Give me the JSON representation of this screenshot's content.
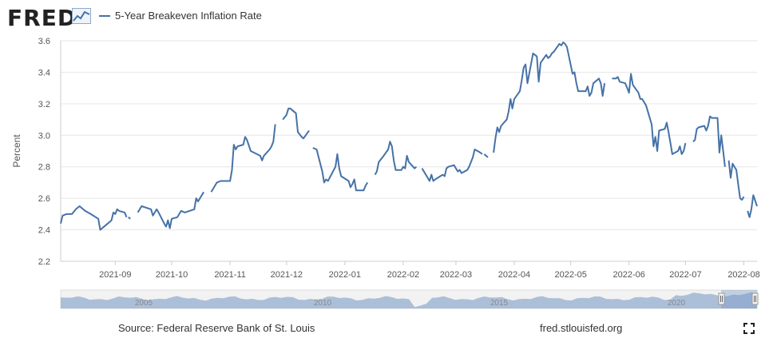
{
  "header": {
    "logo_text": "FRED",
    "legend_label": "5-Year Breakeven Inflation Rate"
  },
  "footer": {
    "source": "Source: Federal Reserve Bank of St. Louis",
    "url": "fred.stlouisfed.org"
  },
  "colors": {
    "series": "#4572a7",
    "grid": "#e6e6e6",
    "navigator_fill": "#94aed0",
    "axis_text": "#555555"
  },
  "icons": {
    "logo_graph": "line-chart-icon",
    "fullscreen": "fullscreen-icon"
  },
  "chart_data": {
    "type": "line",
    "title": "",
    "xlabel": "",
    "ylabel": "Percent",
    "ylim": [
      2.2,
      3.6
    ],
    "y_ticks": [
      2.2,
      2.4,
      2.6,
      2.8,
      3.0,
      3.2,
      3.4,
      3.6
    ],
    "x_tick_labels": [
      "2021-09",
      "2021-10",
      "2021-11",
      "2021-12",
      "2022-01",
      "2022-02",
      "2022-03",
      "2022-04",
      "2022-05",
      "2022-06",
      "2022-07",
      "2022-08"
    ],
    "xlim": [
      "2021-08-03",
      "2022-08-08"
    ],
    "grid": true,
    "legend_position": "top-left",
    "series": [
      {
        "name": "5-Year Breakeven Inflation Rate",
        "points": [
          [
            "2021-08-03",
            2.44
          ],
          [
            "2021-08-04",
            2.49
          ],
          [
            "2021-08-06",
            2.5
          ],
          [
            "2021-08-09",
            2.5
          ],
          [
            "2021-08-11",
            2.53
          ],
          [
            "2021-08-13",
            2.55
          ],
          [
            "2021-08-16",
            2.52
          ],
          [
            "2021-08-19",
            2.5
          ],
          [
            "2021-08-23",
            2.47
          ],
          [
            "2021-08-24",
            2.4
          ],
          [
            "2021-08-27",
            2.43
          ],
          [
            "2021-08-30",
            2.46
          ],
          [
            "2021-08-31",
            2.51
          ],
          [
            "2021-09-01",
            2.5
          ],
          [
            "2021-09-02",
            2.53
          ],
          [
            "2021-09-03",
            2.52
          ],
          [
            "2021-09-06",
            2.51
          ],
          [
            "2021-09-07",
            2.48
          ],
          null,
          [
            "2021-09-08",
            2.48
          ],
          [
            "2021-09-09",
            2.47
          ],
          null,
          [
            "2021-09-13",
            2.51
          ],
          [
            "2021-09-15",
            2.55
          ],
          [
            "2021-09-20",
            2.53
          ],
          [
            "2021-09-21",
            2.49
          ],
          [
            "2021-09-23",
            2.53
          ],
          [
            "2021-09-24",
            2.51
          ],
          [
            "2021-09-27",
            2.44
          ],
          [
            "2021-09-28",
            2.42
          ],
          [
            "2021-09-29",
            2.46
          ],
          [
            "2021-09-30",
            2.41
          ],
          [
            "2021-10-01",
            2.47
          ],
          [
            "2021-10-04",
            2.48
          ],
          [
            "2021-10-06",
            2.52
          ],
          [
            "2021-10-08",
            2.51
          ],
          [
            "2021-10-13",
            2.53
          ],
          [
            "2021-10-14",
            2.6
          ],
          [
            "2021-10-15",
            2.58
          ],
          [
            "2021-10-18",
            2.64
          ],
          null,
          [
            "2021-10-22",
            2.64
          ],
          [
            "2021-10-25",
            2.7
          ],
          [
            "2021-10-27",
            2.71
          ],
          [
            "2021-11-01",
            2.71
          ],
          [
            "2021-11-02",
            2.78
          ],
          [
            "2021-11-03",
            2.94
          ],
          [
            "2021-11-04",
            2.91
          ],
          [
            "2021-11-05",
            2.93
          ],
          [
            "2021-11-08",
            2.94
          ],
          [
            "2021-11-09",
            2.99
          ],
          [
            "2021-11-10",
            2.97
          ],
          [
            "2021-11-12",
            2.9
          ],
          [
            "2021-11-17",
            2.87
          ],
          [
            "2021-11-18",
            2.84
          ],
          [
            "2021-11-19",
            2.87
          ],
          [
            "2021-11-22",
            2.91
          ],
          [
            "2021-11-23",
            2.93
          ],
          [
            "2021-11-24",
            2.96
          ],
          [
            "2021-11-25",
            3.07
          ],
          null,
          [
            "2021-11-29",
            3.1
          ],
          [
            "2021-12-01",
            3.13
          ],
          [
            "2021-12-02",
            3.17
          ],
          [
            "2021-12-03",
            3.17
          ],
          [
            "2021-12-06",
            3.14
          ],
          [
            "2021-12-07",
            3.02
          ],
          [
            "2021-12-09",
            2.99
          ],
          [
            "2021-12-10",
            2.98
          ],
          [
            "2021-12-13",
            3.03
          ],
          null,
          [
            "2021-12-15",
            2.92
          ],
          [
            "2021-12-17",
            2.91
          ],
          [
            "2021-12-20",
            2.77
          ],
          [
            "2021-12-21",
            2.7
          ],
          [
            "2021-12-22",
            2.72
          ],
          [
            "2021-12-23",
            2.71
          ],
          [
            "2021-12-27",
            2.8
          ],
          [
            "2021-12-28",
            2.88
          ],
          [
            "2021-12-29",
            2.79
          ],
          [
            "2021-12-30",
            2.74
          ],
          [
            "2022-01-03",
            2.71
          ],
          [
            "2022-01-04",
            2.67
          ],
          [
            "2022-01-05",
            2.69
          ],
          [
            "2022-01-06",
            2.72
          ],
          [
            "2022-01-07",
            2.65
          ],
          [
            "2022-01-10",
            2.65
          ],
          [
            "2022-01-11",
            2.65
          ],
          [
            "2022-01-12",
            2.68
          ],
          [
            "2022-01-13",
            2.7
          ],
          null,
          [
            "2022-01-17",
            2.75
          ],
          [
            "2022-01-18",
            2.77
          ],
          [
            "2022-01-19",
            2.83
          ],
          [
            "2022-01-21",
            2.86
          ],
          [
            "2022-01-24",
            2.91
          ],
          [
            "2022-01-25",
            2.96
          ],
          [
            "2022-01-26",
            2.93
          ],
          [
            "2022-01-27",
            2.84
          ],
          [
            "2022-01-28",
            2.78
          ],
          [
            "2022-01-31",
            2.78
          ],
          [
            "2022-02-01",
            2.8
          ],
          [
            "2022-02-02",
            2.79
          ],
          [
            "2022-02-03",
            2.87
          ],
          [
            "2022-02-04",
            2.83
          ],
          [
            "2022-02-07",
            2.79
          ],
          [
            "2022-02-08",
            2.8
          ],
          null,
          [
            "2022-02-11",
            2.79
          ],
          [
            "2022-02-14",
            2.73
          ],
          [
            "2022-02-15",
            2.71
          ],
          [
            "2022-02-16",
            2.75
          ],
          [
            "2022-02-17",
            2.71
          ],
          [
            "2022-02-18",
            2.72
          ],
          [
            "2022-02-22",
            2.75
          ],
          [
            "2022-02-23",
            2.74
          ],
          [
            "2022-02-24",
            2.79
          ],
          [
            "2022-02-25",
            2.8
          ],
          [
            "2022-02-28",
            2.81
          ],
          [
            "2022-03-01",
            2.79
          ],
          [
            "2022-03-02",
            2.77
          ],
          [
            "2022-03-03",
            2.78
          ],
          [
            "2022-03-04",
            2.76
          ],
          [
            "2022-03-07",
            2.78
          ],
          [
            "2022-03-08",
            2.8
          ],
          [
            "2022-03-09",
            2.83
          ],
          [
            "2022-03-10",
            2.86
          ],
          [
            "2022-03-11",
            2.91
          ],
          [
            "2022-03-14",
            2.89
          ],
          [
            "2022-03-15",
            2.88
          ],
          null,
          [
            "2022-03-16",
            2.88
          ],
          [
            "2022-03-18",
            2.86
          ],
          null,
          [
            "2022-03-21",
            2.89
          ],
          [
            "2022-03-22",
            2.98
          ],
          [
            "2022-03-23",
            3.05
          ],
          [
            "2022-03-24",
            3.02
          ],
          [
            "2022-03-25",
            3.06
          ],
          [
            "2022-03-28",
            3.1
          ],
          [
            "2022-03-29",
            3.15
          ],
          [
            "2022-03-30",
            3.23
          ],
          [
            "2022-03-31",
            3.17
          ],
          [
            "2022-04-01",
            3.23
          ],
          [
            "2022-04-04",
            3.28
          ],
          [
            "2022-04-05",
            3.35
          ],
          [
            "2022-04-06",
            3.43
          ],
          [
            "2022-04-07",
            3.45
          ],
          [
            "2022-04-08",
            3.33
          ],
          [
            "2022-04-11",
            3.52
          ],
          [
            "2022-04-12",
            3.51
          ],
          [
            "2022-04-13",
            3.5
          ],
          [
            "2022-04-14",
            3.34
          ],
          [
            "2022-04-15",
            3.46
          ],
          [
            "2022-04-18",
            3.51
          ],
          [
            "2022-04-19",
            3.49
          ],
          [
            "2022-04-20",
            3.5
          ],
          [
            "2022-04-21",
            3.52
          ],
          [
            "2022-04-22",
            3.53
          ],
          [
            "2022-04-25",
            3.58
          ],
          [
            "2022-04-26",
            3.57
          ],
          [
            "2022-04-27",
            3.59
          ],
          [
            "2022-04-28",
            3.58
          ],
          [
            "2022-04-29",
            3.56
          ],
          [
            "2022-05-02",
            3.39
          ],
          [
            "2022-05-03",
            3.4
          ],
          [
            "2022-05-04",
            3.33
          ],
          [
            "2022-05-05",
            3.28
          ],
          [
            "2022-05-06",
            3.28
          ],
          [
            "2022-05-09",
            3.28
          ],
          [
            "2022-05-10",
            3.31
          ],
          [
            "2022-05-11",
            3.25
          ],
          [
            "2022-05-12",
            3.27
          ],
          [
            "2022-05-13",
            3.33
          ],
          [
            "2022-05-16",
            3.36
          ],
          [
            "2022-05-17",
            3.33
          ],
          [
            "2022-05-18",
            3.25
          ],
          [
            "2022-05-19",
            3.33
          ],
          null,
          [
            "2022-05-23",
            3.36
          ],
          [
            "2022-05-25",
            3.36
          ],
          [
            "2022-05-26",
            3.37
          ],
          [
            "2022-05-27",
            3.34
          ],
          [
            "2022-05-30",
            3.33
          ],
          [
            "2022-05-31",
            3.3
          ],
          [
            "2022-06-01",
            3.27
          ],
          [
            "2022-06-02",
            3.39
          ],
          [
            "2022-06-03",
            3.32
          ],
          [
            "2022-06-06",
            3.27
          ],
          [
            "2022-06-07",
            3.23
          ],
          [
            "2022-06-08",
            3.23
          ],
          [
            "2022-06-09",
            3.21
          ],
          [
            "2022-06-10",
            3.19
          ],
          [
            "2022-06-13",
            3.07
          ],
          [
            "2022-06-14",
            2.93
          ],
          [
            "2022-06-15",
            2.99
          ],
          [
            "2022-06-16",
            2.9
          ],
          [
            "2022-06-17",
            3.03
          ],
          [
            "2022-06-20",
            3.04
          ],
          [
            "2022-06-21",
            3.08
          ],
          [
            "2022-06-22",
            3.02
          ],
          [
            "2022-06-23",
            2.95
          ],
          [
            "2022-06-24",
            2.88
          ],
          [
            "2022-06-27",
            2.9
          ],
          [
            "2022-06-28",
            2.93
          ],
          [
            "2022-06-29",
            2.88
          ],
          [
            "2022-06-30",
            2.9
          ],
          [
            "2022-07-01",
            2.95
          ],
          null,
          [
            "2022-07-05",
            2.96
          ],
          [
            "2022-07-06",
            2.97
          ],
          [
            "2022-07-07",
            3.04
          ],
          [
            "2022-07-08",
            3.05
          ],
          [
            "2022-07-11",
            3.06
          ],
          [
            "2022-07-12",
            3.03
          ],
          [
            "2022-07-13",
            3.06
          ],
          [
            "2022-07-14",
            3.12
          ],
          [
            "2022-07-15",
            3.11
          ],
          [
            "2022-07-18",
            3.11
          ],
          [
            "2022-07-19",
            2.89
          ],
          [
            "2022-07-20",
            3.0
          ],
          [
            "2022-07-21",
            2.9
          ],
          [
            "2022-07-22",
            2.8
          ],
          null,
          [
            "2022-07-24",
            2.84
          ],
          [
            "2022-07-25",
            2.73
          ],
          [
            "2022-07-26",
            2.82
          ],
          [
            "2022-07-27",
            2.8
          ],
          [
            "2022-07-28",
            2.78
          ],
          [
            "2022-07-29",
            2.69
          ],
          [
            "2022-07-30",
            2.6
          ],
          [
            "2022-07-31",
            2.59
          ],
          [
            "2022-08-01",
            2.61
          ],
          null,
          [
            "2022-08-03",
            2.52
          ],
          [
            "2022-08-04",
            2.48
          ],
          [
            "2022-08-05",
            2.53
          ],
          [
            "2022-08-06",
            2.62
          ],
          [
            "2022-08-08",
            2.55
          ]
        ]
      }
    ]
  },
  "navigator": {
    "labels": [
      "2005",
      "2010",
      "2015",
      "2020"
    ]
  }
}
